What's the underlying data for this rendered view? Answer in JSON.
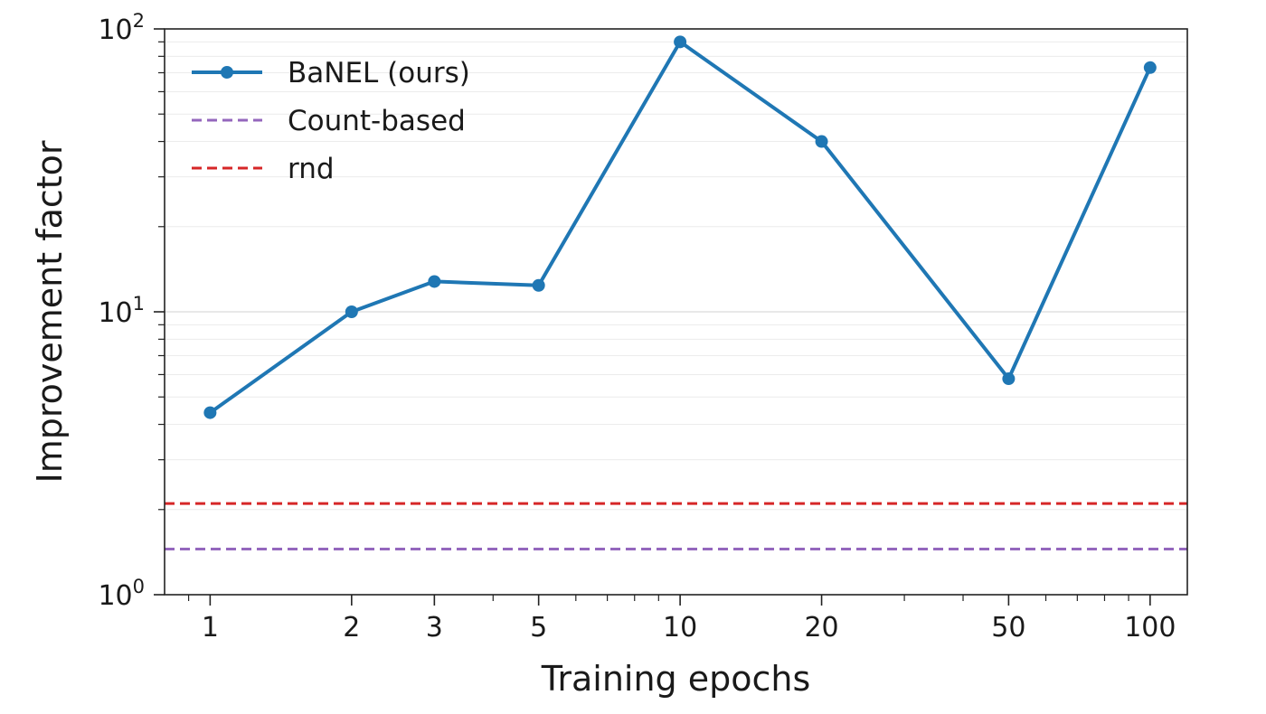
{
  "chart_data": {
    "type": "line",
    "title": "",
    "xlabel": "Training epochs",
    "ylabel": "Improvement factor",
    "xscale": "log",
    "yscale": "log",
    "xlim": [
      0.8,
      120
    ],
    "ylim": [
      1,
      100
    ],
    "grid": "horizontal, minor and major, light",
    "legend": "top-left",
    "x_ticks": [
      1,
      2,
      3,
      5,
      10,
      20,
      50,
      100
    ],
    "x_tick_labels": [
      "1",
      "2",
      "3",
      "5",
      "10",
      "20",
      "50",
      "100"
    ],
    "y_ticks": [
      1,
      10,
      100
    ],
    "y_tick_labels": [
      {
        "base": "10",
        "exp": "0"
      },
      {
        "base": "10",
        "exp": "1"
      },
      {
        "base": "10",
        "exp": "2"
      }
    ],
    "series": [
      {
        "name": "BaNEL (ours)",
        "style": "solid-line-with-markers",
        "color": "#1f77b4",
        "x": [
          1,
          2,
          3,
          5,
          10,
          20,
          50,
          100
        ],
        "y": [
          4.4,
          10.0,
          12.8,
          12.4,
          90,
          40,
          5.8,
          73
        ]
      },
      {
        "name": "Count-based",
        "style": "dashed-horizontal",
        "color": "#9467bd",
        "y": 1.45
      },
      {
        "name": "rnd",
        "style": "dashed-horizontal",
        "color": "#d62728",
        "y": 2.1
      }
    ]
  }
}
